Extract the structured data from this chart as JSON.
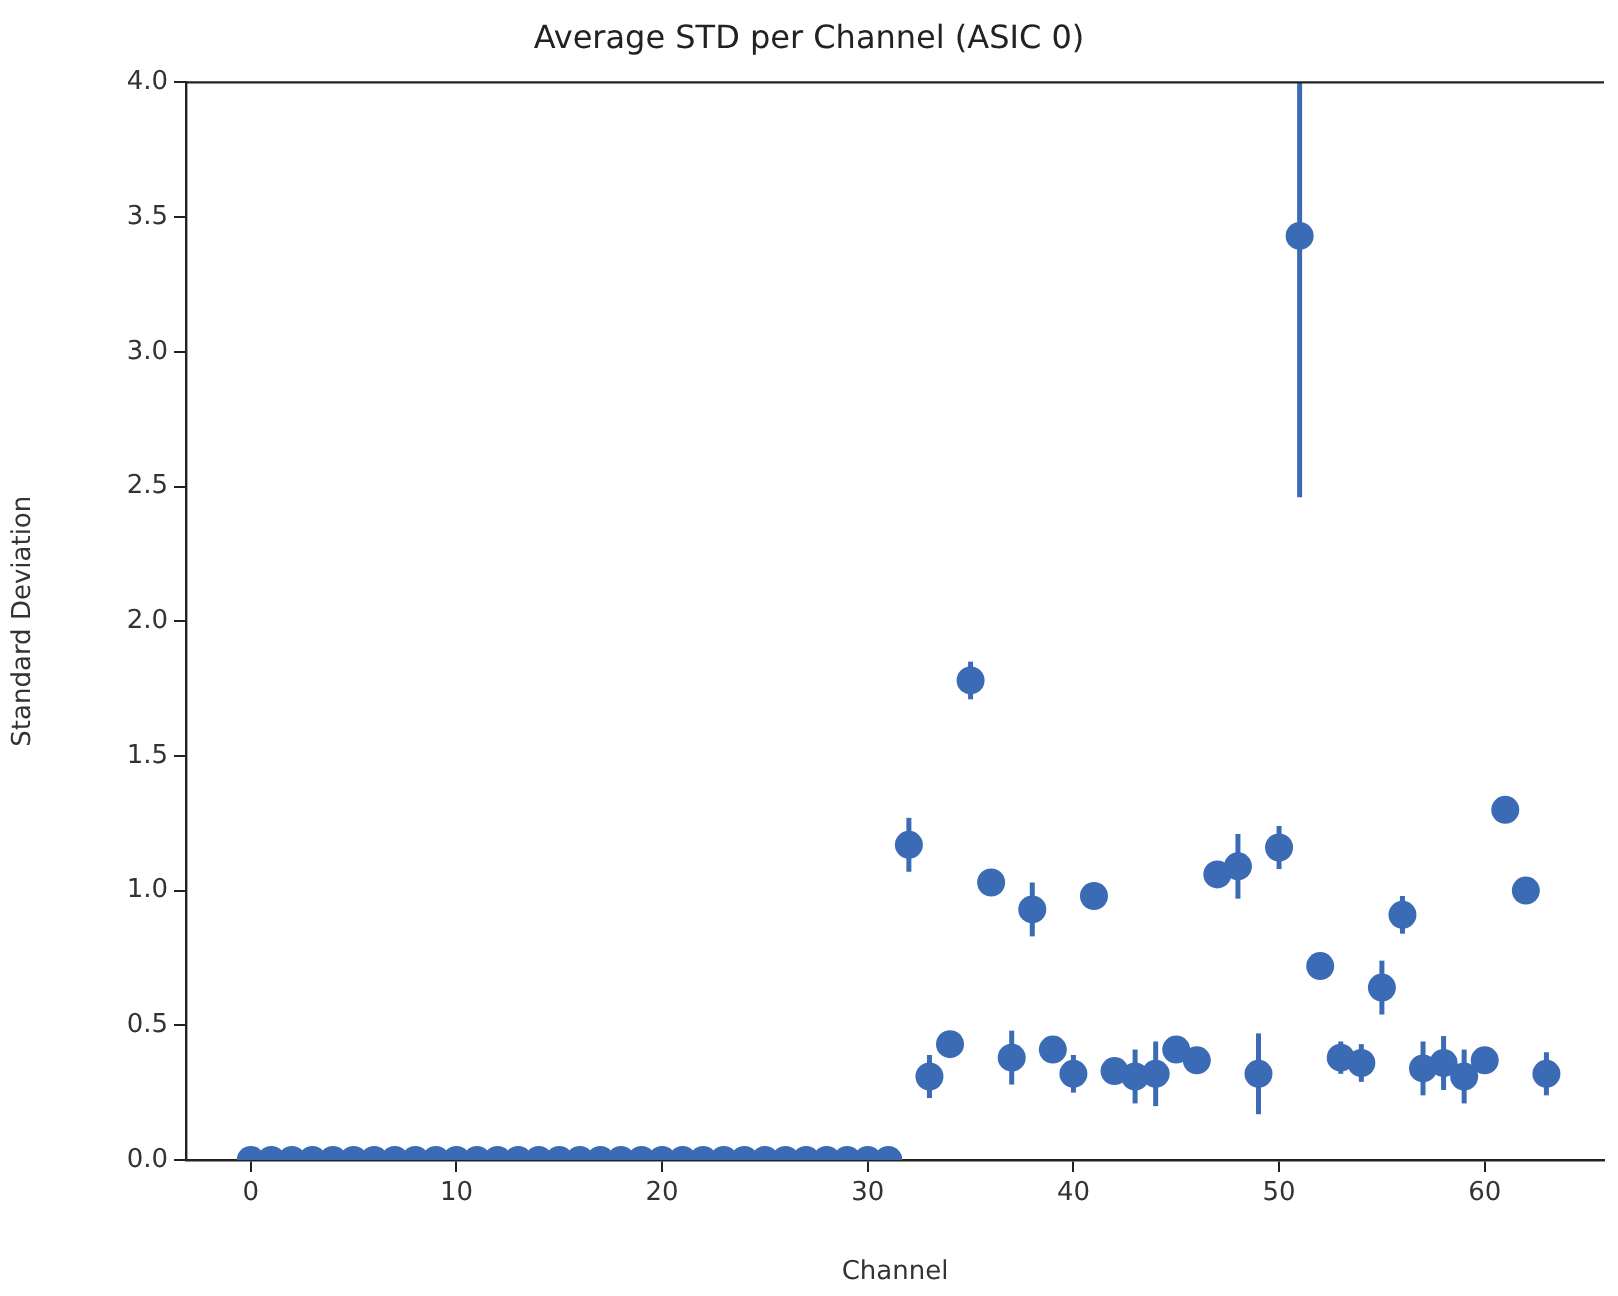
{
  "chart_data": {
    "type": "scatter",
    "title": "Average STD per Channel (ASIC 0)",
    "xlabel": "Channel",
    "ylabel": "Standard Deviation",
    "x": [
      0,
      1,
      2,
      3,
      4,
      5,
      6,
      7,
      8,
      9,
      10,
      11,
      12,
      13,
      14,
      15,
      16,
      17,
      18,
      19,
      20,
      21,
      22,
      23,
      24,
      25,
      26,
      27,
      28,
      29,
      30,
      31,
      32,
      33,
      34,
      35,
      36,
      37,
      38,
      39,
      40,
      41,
      42,
      43,
      44,
      45,
      46,
      47,
      48,
      49,
      50,
      51,
      52,
      53,
      54,
      55,
      56,
      57,
      58,
      59,
      60,
      61,
      62,
      63
    ],
    "series": [
      {
        "color": "#3b6bb5",
        "values": [
          0,
          0,
          0,
          0,
          0,
          0,
          0,
          0,
          0,
          0,
          0,
          0,
          0,
          0,
          0,
          0,
          0,
          0,
          0,
          0,
          0,
          0,
          0,
          0,
          0,
          0,
          0,
          0,
          0,
          0,
          0,
          0,
          1.17,
          0.31,
          0.43,
          1.78,
          1.03,
          0.38,
          0.93,
          0.41,
          0.32,
          0.98,
          0.33,
          0.31,
          0.32,
          0.41,
          0.37,
          1.06,
          1.09,
          0.32,
          1.16,
          3.43,
          0.72,
          0.38,
          0.36,
          0.64,
          0.91,
          0.34,
          0.36,
          0.31,
          0.37,
          1.3,
          1.0,
          0.32
        ],
        "errors": [
          null,
          null,
          null,
          null,
          null,
          null,
          null,
          null,
          null,
          null,
          null,
          null,
          null,
          null,
          null,
          null,
          null,
          null,
          null,
          null,
          null,
          null,
          null,
          null,
          null,
          null,
          null,
          null,
          null,
          null,
          null,
          null,
          0.1,
          0.08,
          null,
          0.07,
          null,
          0.1,
          0.1,
          null,
          0.07,
          null,
          null,
          0.1,
          0.12,
          null,
          null,
          null,
          0.12,
          0.15,
          0.08,
          [
            2.46,
            4.0
          ],
          null,
          0.06,
          0.07,
          0.1,
          0.07,
          0.1,
          0.1,
          0.1,
          null,
          null,
          null,
          0.08
        ]
      }
    ],
    "xlim": [
      -3.15,
      65.8
    ],
    "ylim": [
      0,
      4.0
    ],
    "xticks": [
      0,
      10,
      20,
      30,
      40,
      50,
      60
    ],
    "yticks": [
      {
        "value": 0,
        "label": "0.0"
      },
      {
        "value": 0.5,
        "label": "0.5"
      },
      {
        "value": 1,
        "label": "1.0"
      },
      {
        "value": 1.5,
        "label": "1.5"
      },
      {
        "value": 2,
        "label": "2.0"
      },
      {
        "value": 2.5,
        "label": "2.5"
      },
      {
        "value": 3,
        "label": "3.0"
      },
      {
        "value": 3.5,
        "label": "3.5"
      },
      {
        "value": 4,
        "label": "4.0"
      }
    ],
    "grid": false,
    "legend": false,
    "marker": "circle"
  }
}
